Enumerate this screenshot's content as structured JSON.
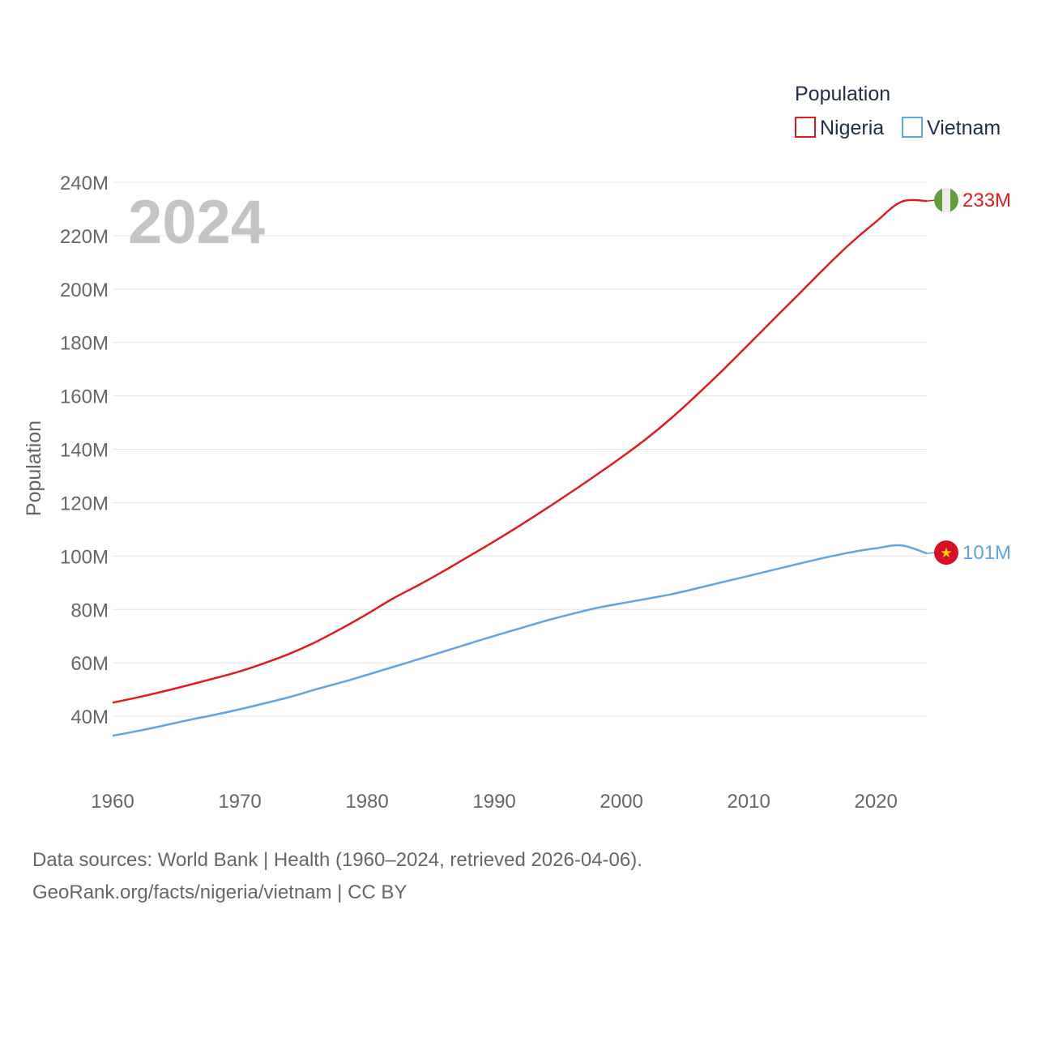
{
  "chart_data": {
    "type": "line",
    "ylabel": "Population",
    "legend_title": "Population",
    "legend_position": "top-right",
    "year_label": "2024",
    "grid": true,
    "x": [
      1960,
      1962,
      1964,
      1966,
      1968,
      1970,
      1972,
      1974,
      1976,
      1978,
      1980,
      1982,
      1984,
      1986,
      1988,
      1990,
      1992,
      1994,
      1996,
      1998,
      2000,
      2002,
      2004,
      2006,
      2008,
      2010,
      2012,
      2014,
      2016,
      2018,
      2020,
      2022,
      2024
    ],
    "xlim": [
      1960,
      2024
    ],
    "ylim": [
      20000000,
      240000000
    ],
    "x_ticks": [
      1960,
      1970,
      1980,
      1990,
      2000,
      2010,
      2020
    ],
    "x_tick_labels": [
      "1960",
      "1970",
      "1980",
      "1990",
      "2000",
      "2010",
      "2020"
    ],
    "y_ticks": [
      40000000,
      60000000,
      80000000,
      100000000,
      120000000,
      140000000,
      160000000,
      180000000,
      200000000,
      220000000,
      240000000
    ],
    "y_tick_labels": [
      "40M",
      "60M",
      "80M",
      "100M",
      "120M",
      "140M",
      "160M",
      "180M",
      "200M",
      "220M",
      "240M"
    ],
    "series": [
      {
        "name": "Nigeria",
        "color": "#e31a1c",
        "flag": "nigeria-flag",
        "end_label": "233M",
        "values": [
          45100000,
          47100000,
          49300000,
          51700000,
          54200000,
          56800000,
          60000000,
          63600000,
          67900000,
          72900000,
          78300000,
          84000000,
          89000000,
          94300000,
          99900000,
          105500000,
          111400000,
          117500000,
          123800000,
          130300000,
          137000000,
          144100000,
          152000000,
          160700000,
          169800000,
          179300000,
          188900000,
          198400000,
          208000000,
          217100000,
          225200000,
          232700000,
          233000000
        ]
      },
      {
        "name": "Vietnam",
        "color": "#5fa4e3",
        "flag": "vietnam-flag",
        "end_label": "101M",
        "values": [
          32700000,
          34500000,
          36500000,
          38600000,
          40500000,
          42600000,
          44900000,
          47300000,
          50100000,
          52700000,
          55500000,
          58400000,
          61300000,
          64200000,
          67200000,
          70100000,
          72900000,
          75700000,
          78200000,
          80500000,
          82300000,
          84000000,
          85800000,
          88000000,
          90300000,
          92600000,
          94900000,
          97200000,
          99400000,
          101400000,
          102900000,
          104000000,
          101000000
        ]
      }
    ]
  },
  "footer": {
    "line1": "Data sources: World Bank | Health (1960–2024, retrieved 2026-04-06).",
    "line2": "GeoRank.org/facts/nigeria/vietnam | CC BY"
  }
}
